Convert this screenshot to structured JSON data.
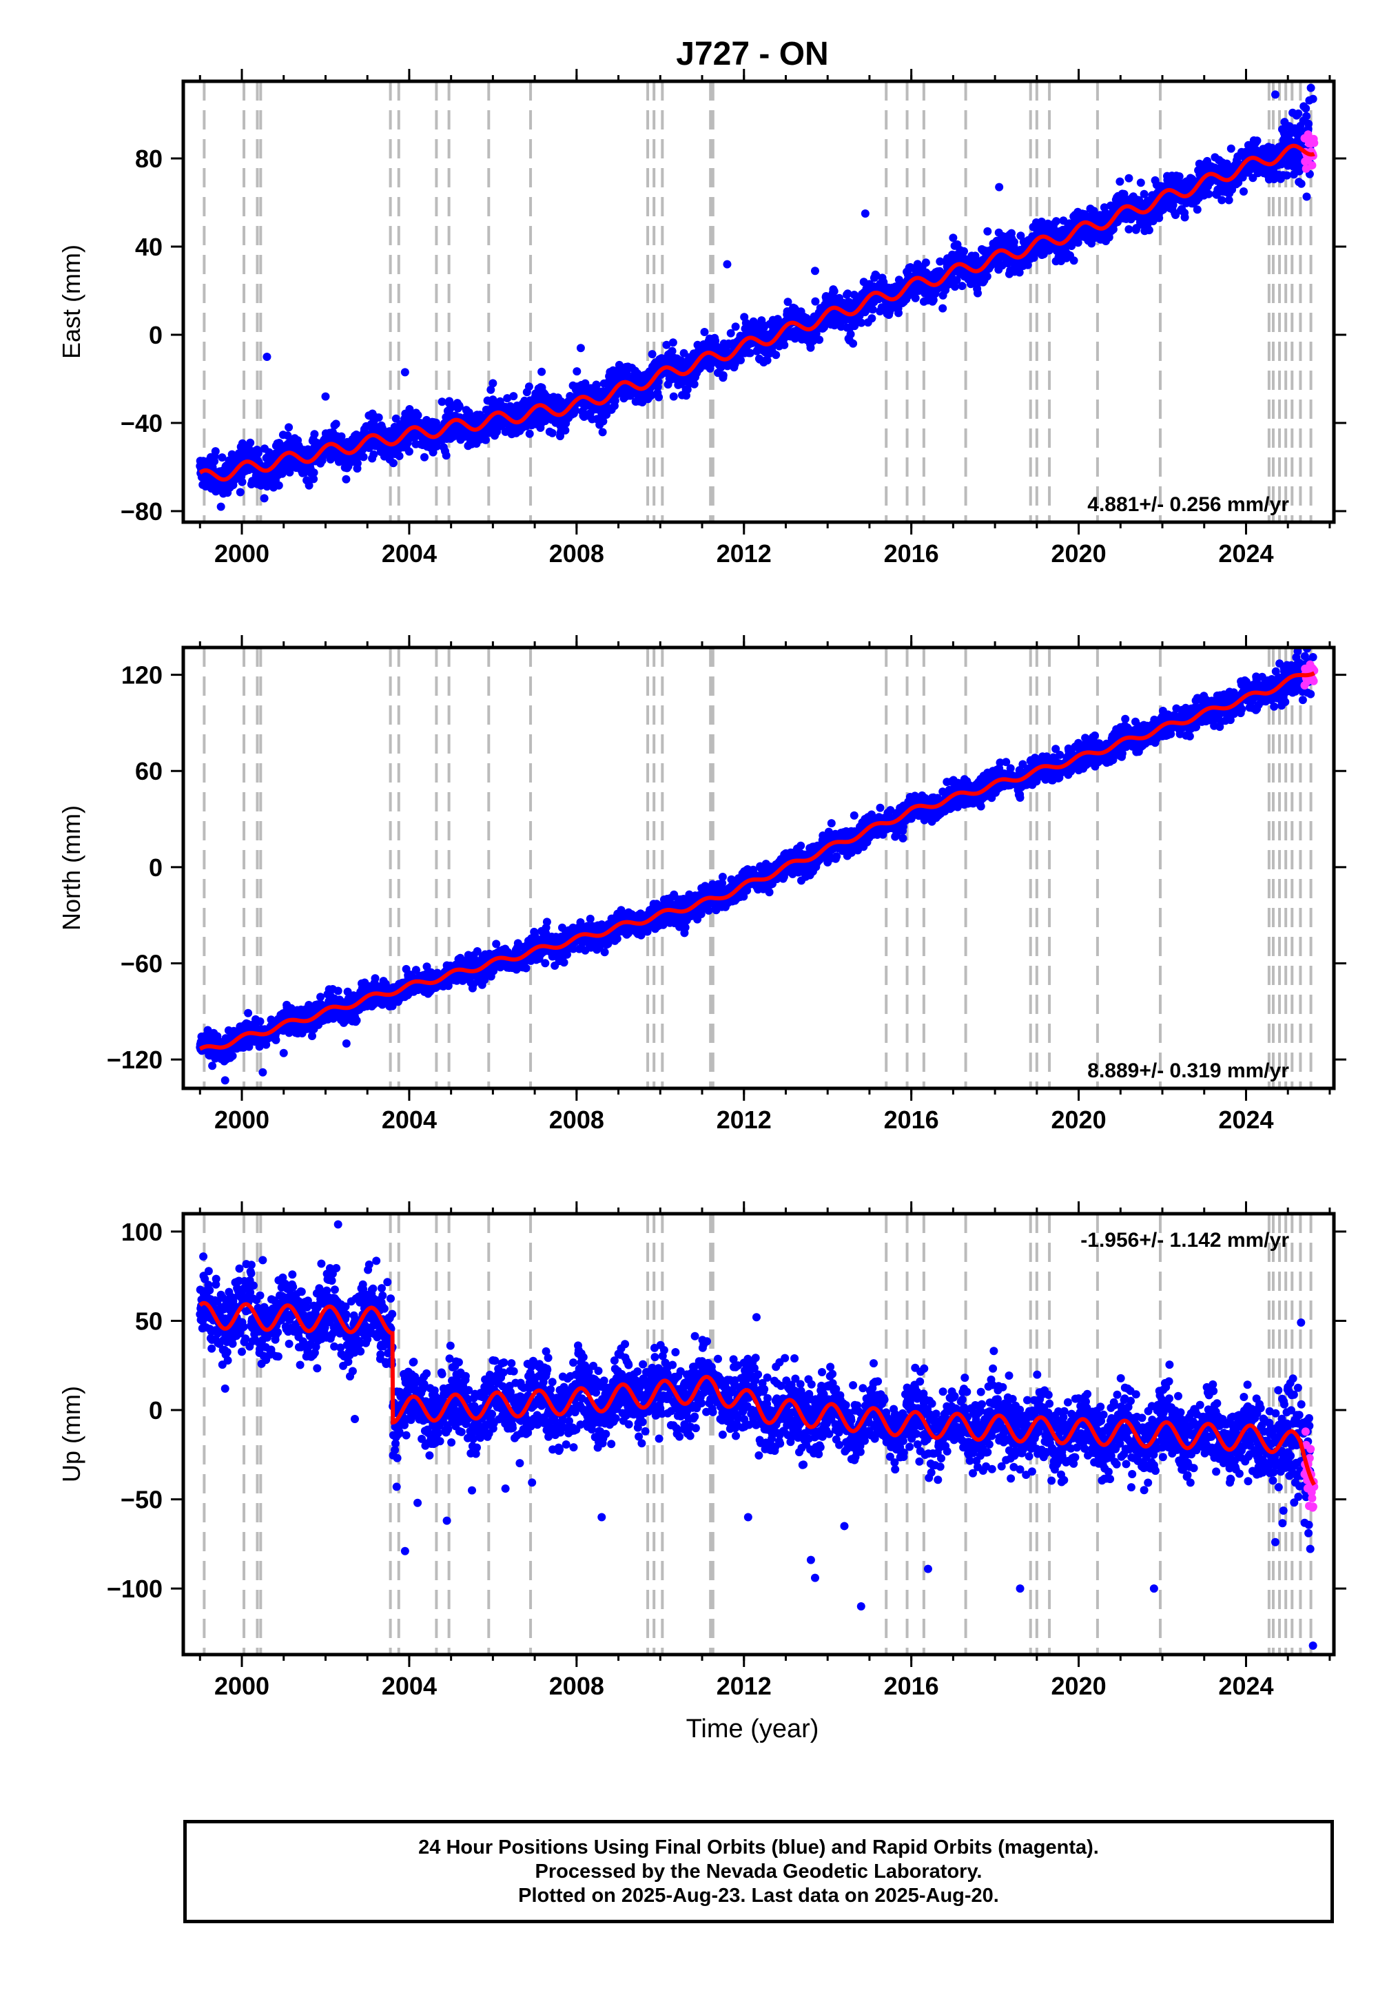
{
  "title": "J727 - ON",
  "xlabel": "Time (year)",
  "colors": {
    "final": "#0000ff",
    "rapid": "#ff33ff",
    "model": "#ff0000",
    "breaks": "#bbbbbb"
  },
  "caption": [
    "24 Hour Positions Using Final Orbits (blue) and Rapid Orbits (magenta).",
    "Processed by the Nevada Geodetic Laboratory.",
    "Plotted on 2025-Aug-23. Last data on 2025-Aug-20."
  ],
  "breaks": [
    1999.1,
    2000.05,
    2000.37,
    2000.45,
    2003.55,
    2003.75,
    2004.65,
    2004.95,
    2005.9,
    2006.9,
    2009.7,
    2009.85,
    2010.05,
    2011.2,
    2011.26,
    2015.4,
    2015.9,
    2016.3,
    2017.3,
    2018.85,
    2019.0,
    2019.3,
    2020.45,
    2021.95,
    2024.55,
    2024.65,
    2024.8,
    2024.95,
    2025.1,
    2025.3,
    2025.55
  ],
  "chart_data": [
    {
      "type": "scatter",
      "ylabel": "East (mm)",
      "xlim": [
        1998.6,
        2026.1
      ],
      "ylim": [
        -85,
        115
      ],
      "xticks": [
        2000,
        2004,
        2008,
        2012,
        2016,
        2020,
        2024
      ],
      "yticks": [
        -80,
        -40,
        0,
        40,
        80
      ],
      "rate_label": "4.881+/- 0.256 mm/yr",
      "rate_position": "bottom-right",
      "x_range": [
        1999.0,
        2025.55
      ],
      "rapid_x_range": [
        2025.4,
        2025.63
      ],
      "model": {
        "trend": [
          [
            1999.0,
            -65
          ],
          [
            2003.5,
            -47
          ],
          [
            2008.0,
            -32
          ],
          [
            2011.3,
            -10
          ],
          [
            2016.0,
            22
          ],
          [
            2020.0,
            47
          ],
          [
            2024.5,
            80
          ],
          [
            2025.63,
            85
          ]
        ],
        "steps": [],
        "seasonal_amplitude": 3
      },
      "noise": 4,
      "spread_ends": [
        [
          2024.8,
          2025.6,
          9
        ]
      ],
      "outliers": [
        [
          1999.5,
          -78
        ],
        [
          2000.6,
          -10
        ],
        [
          2002.0,
          -28
        ],
        [
          2003.9,
          -17
        ],
        [
          2006.0,
          -22
        ],
        [
          2008.1,
          -6
        ],
        [
          2011.6,
          32
        ],
        [
          2013.7,
          29
        ],
        [
          2014.9,
          55
        ],
        [
          2017.0,
          44
        ],
        [
          2018.1,
          67
        ],
        [
          2021.2,
          71
        ],
        [
          2024.7,
          109
        ],
        [
          2025.55,
          112
        ],
        [
          2025.6,
          107
        ]
      ]
    },
    {
      "type": "scatter",
      "ylabel": "North (mm)",
      "xlim": [
        1998.6,
        2026.1
      ],
      "ylim": [
        -138,
        137
      ],
      "xticks": [
        2000,
        2004,
        2008,
        2012,
        2016,
        2020,
        2024
      ],
      "yticks": [
        -120,
        -60,
        0,
        60,
        120
      ],
      "rate_label": "8.889+/- 0.319 mm/yr",
      "rate_position": "bottom-right",
      "x_range": [
        1999.0,
        2025.55
      ],
      "rapid_x_range": [
        2025.4,
        2025.63
      ],
      "model": {
        "trend": [
          [
            1999.0,
            -115
          ],
          [
            2003.5,
            -78
          ],
          [
            2008.0,
            -45
          ],
          [
            2011.3,
            -20
          ],
          [
            2016.0,
            35
          ],
          [
            2020.0,
            68
          ],
          [
            2024.5,
            110
          ],
          [
            2025.63,
            123
          ]
        ],
        "steps": [],
        "seasonal_amplitude": 2
      },
      "noise": 4,
      "spread_ends": [
        [
          2024.8,
          2025.6,
          6
        ]
      ],
      "outliers": [
        [
          1999.6,
          -133
        ],
        [
          2000.5,
          -128
        ],
        [
          2001.0,
          -116
        ],
        [
          2002.5,
          -110
        ],
        [
          2010.0,
          -35
        ],
        [
          2014.0,
          3
        ],
        [
          2015.8,
          18
        ],
        [
          2024.8,
          127
        ],
        [
          2025.6,
          131
        ]
      ]
    },
    {
      "type": "scatter",
      "ylabel": "Up (mm)",
      "xlim": [
        1998.6,
        2026.1
      ],
      "ylim": [
        -137,
        110
      ],
      "xticks": [
        2000,
        2004,
        2008,
        2012,
        2016,
        2020,
        2024
      ],
      "yticks": [
        -100,
        -50,
        0,
        50,
        100
      ],
      "rate_label": "-1.956+/- 1.142 mm/yr",
      "rate_position": "top-right",
      "x_range": [
        1999.0,
        2025.55
      ],
      "rapid_x_range": [
        2025.4,
        2025.63
      ],
      "model": {
        "trend": [
          [
            1999.0,
            53
          ],
          [
            2003.6,
            50
          ],
          [
            2003.61,
            0
          ],
          [
            2008.0,
            5
          ],
          [
            2011.3,
            12
          ],
          [
            2012.5,
            0
          ],
          [
            2016.0,
            -8
          ],
          [
            2020.0,
            -12
          ],
          [
            2024.5,
            -16
          ],
          [
            2025.3,
            -20
          ],
          [
            2025.63,
            -35
          ]
        ],
        "steps": [],
        "seasonal_amplitude": 7
      },
      "noise": 10,
      "spread_ends": [
        [
          2024.8,
          2025.6,
          18
        ]
      ],
      "outliers": [
        [
          1999.6,
          12
        ],
        [
          2000.5,
          84
        ],
        [
          2001.9,
          82
        ],
        [
          2002.3,
          104
        ],
        [
          2002.7,
          -5
        ],
        [
          2003.7,
          -43
        ],
        [
          2003.9,
          -79
        ],
        [
          2004.2,
          -52
        ],
        [
          2004.9,
          -62
        ],
        [
          2005.5,
          -45
        ],
        [
          2006.3,
          -44
        ],
        [
          2008.6,
          -60
        ],
        [
          2012.1,
          -60
        ],
        [
          2012.3,
          52
        ],
        [
          2013.6,
          -84
        ],
        [
          2013.7,
          -94
        ],
        [
          2014.4,
          -65
        ],
        [
          2014.8,
          -110
        ],
        [
          2016.4,
          -89
        ],
        [
          2018.6,
          -100
        ],
        [
          2021.8,
          -100
        ],
        [
          2024.7,
          -74
        ],
        [
          2025.6,
          -132
        ]
      ]
    }
  ]
}
